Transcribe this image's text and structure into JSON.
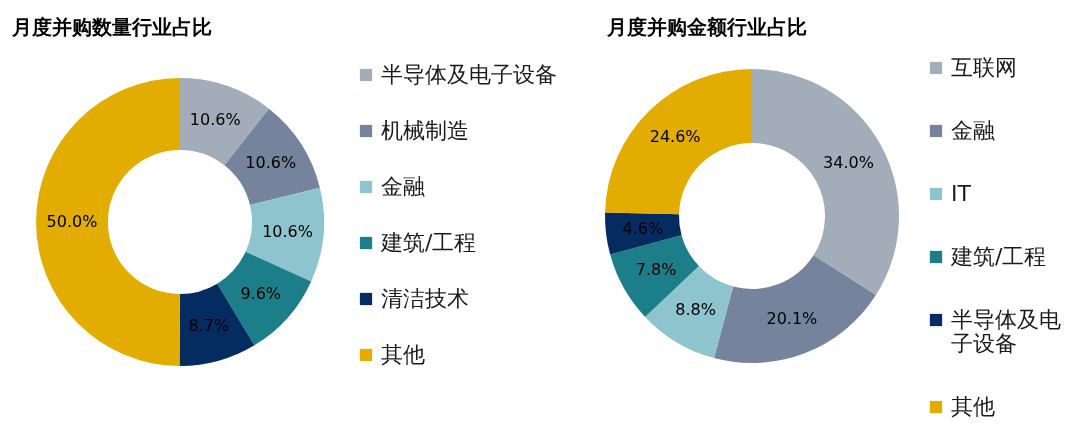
{
  "chart_data": [
    {
      "type": "donut",
      "title": "月度并购数量行业占比",
      "categories": [
        "半导体及电子设备",
        "机械制造",
        "金融",
        "建筑/工程",
        "清洁技术",
        "其他"
      ],
      "values": [
        10.6,
        10.6,
        10.6,
        9.6,
        8.7,
        50.0
      ],
      "colors": [
        "#a3acb9",
        "#75849c",
        "#8dc4cd",
        "#1b7e88",
        "#052c61",
        "#e2ac00"
      ],
      "value_labels": [
        "10.6%",
        "10.6%",
        "10.6%",
        "9.6%",
        "8.7%",
        "50.0%"
      ],
      "legend": "right"
    },
    {
      "type": "donut",
      "title": "月度并购金额行业占比",
      "categories": [
        "互联网",
        "金融",
        "IT",
        "建筑/工程",
        "半导体及电子设备",
        "其他"
      ],
      "values": [
        34.0,
        20.1,
        8.8,
        7.8,
        4.6,
        24.6
      ],
      "colors": [
        "#a3acb9",
        "#75849c",
        "#8dc4cd",
        "#1b7e88",
        "#052c61",
        "#e2ac00"
      ],
      "value_labels": [
        "34.0%",
        "20.1%",
        "8.8%",
        "7.8%",
        "4.6%",
        "24.6%"
      ],
      "legend": "right"
    }
  ]
}
